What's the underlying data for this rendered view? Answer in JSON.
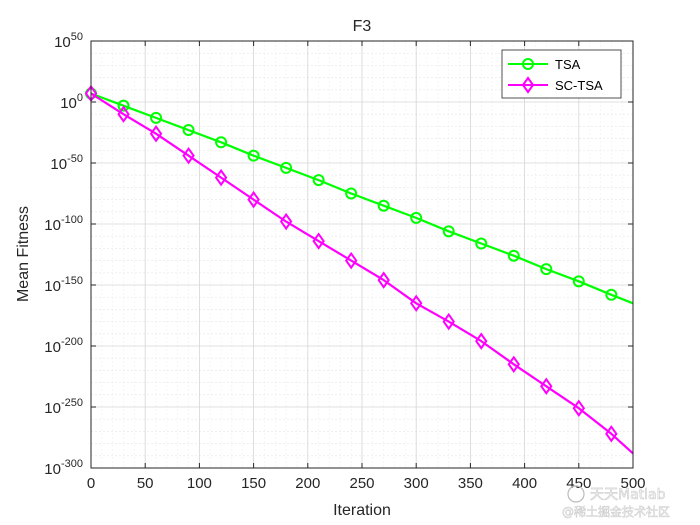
{
  "chart_data": {
    "type": "line",
    "title": "F3",
    "xlabel": "Iteration",
    "ylabel": "Mean Fitness",
    "xlim": [
      0,
      500
    ],
    "ylim_exponent": [
      -300,
      50
    ],
    "yscale": "log",
    "x_ticks": [
      0,
      50,
      100,
      150,
      200,
      250,
      300,
      350,
      400,
      450,
      500
    ],
    "y_tick_exponents": [
      50,
      0,
      -50,
      -100,
      -150,
      -200,
      -250,
      -300
    ],
    "grid": true,
    "legend_position": "top-right",
    "series": [
      {
        "name": "TSA",
        "color": "#00ff00",
        "marker": "circle",
        "x": [
          0,
          30,
          60,
          90,
          120,
          150,
          180,
          210,
          240,
          270,
          300,
          330,
          360,
          390,
          420,
          450,
          480,
          500
        ],
        "y_exponent": [
          7,
          -3,
          -13,
          -23,
          -33,
          -44,
          -54,
          -64,
          -75,
          -85,
          -95,
          -106,
          -116,
          -126,
          -137,
          -147,
          -158,
          -165
        ]
      },
      {
        "name": "SC-TSA",
        "color": "#ff00ff",
        "marker": "diamond",
        "x": [
          0,
          30,
          60,
          90,
          120,
          150,
          180,
          210,
          240,
          270,
          300,
          330,
          360,
          390,
          420,
          450,
          480,
          500
        ],
        "y_exponent": [
          7,
          -10,
          -26,
          -44,
          -62,
          -80,
          -98,
          -114,
          -130,
          -146,
          -165,
          -180,
          -196,
          -215,
          -233,
          -251,
          -272,
          -288
        ]
      }
    ]
  },
  "watermark": {
    "line1": "天天Matlab",
    "line2": "@稀土掘金技术社区"
  }
}
